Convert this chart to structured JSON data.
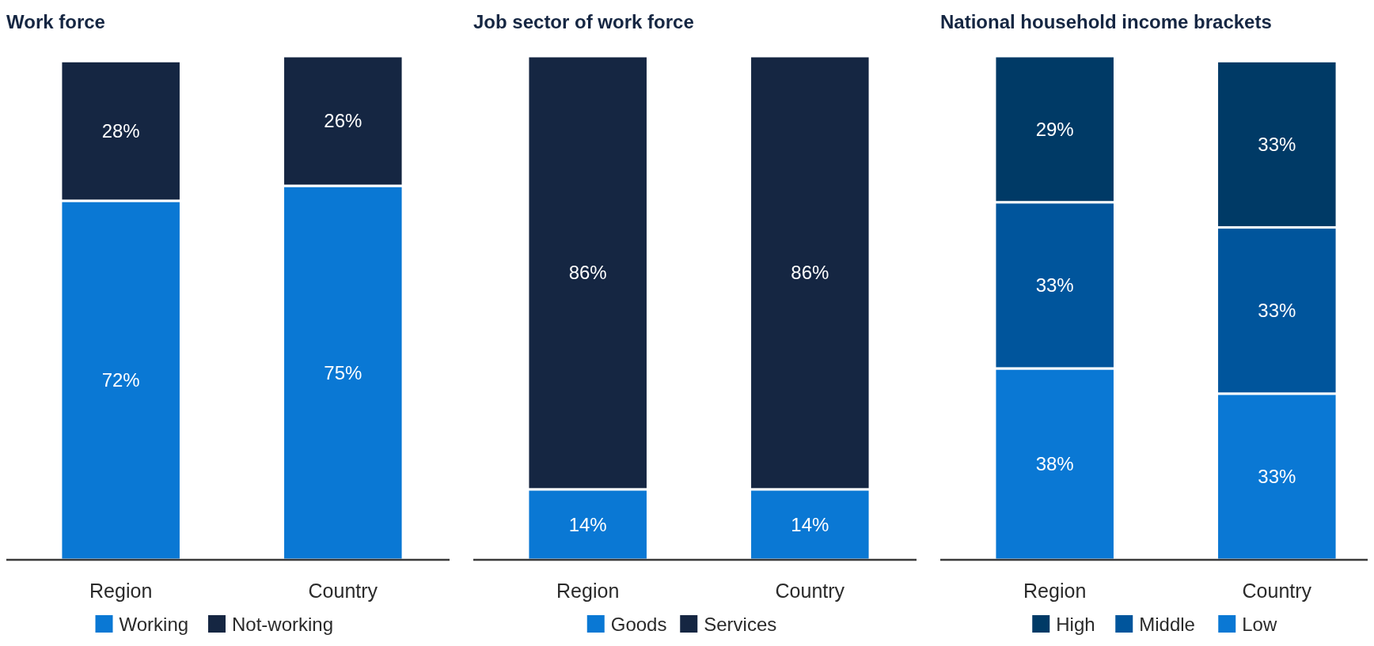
{
  "chart_data": [
    {
      "type": "bar",
      "title": "Work force",
      "categories": [
        "Region",
        "Country"
      ],
      "stacked": true,
      "legend": "bottom",
      "tick_labels": "x",
      "series": [
        {
          "name": "Working",
          "color": "#0a78d4",
          "values": [
            72,
            75
          ],
          "value_labels": [
            "72%",
            "75%"
          ]
        },
        {
          "name": "Not-working",
          "color": "#152642",
          "values": [
            28,
            26
          ],
          "value_labels": [
            "28%",
            "26%"
          ]
        }
      ]
    },
    {
      "type": "bar",
      "title": "Job sector of work force",
      "categories": [
        "Region",
        "Country"
      ],
      "stacked": true,
      "legend": "bottom",
      "tick_labels": "x",
      "series": [
        {
          "name": "Goods",
          "color": "#0a78d4",
          "values": [
            14,
            14
          ],
          "value_labels": [
            "14%",
            "14%"
          ]
        },
        {
          "name": "Services",
          "color": "#152642",
          "values": [
            86,
            86
          ],
          "value_labels": [
            "86%",
            "86%"
          ]
        }
      ]
    },
    {
      "type": "bar",
      "title": "National household income brackets",
      "categories": [
        "Region",
        "Country"
      ],
      "stacked": true,
      "legend": "bottom",
      "tick_labels": "x",
      "series": [
        {
          "name": "Low",
          "color": "#0a78d4",
          "values": [
            38,
            33
          ],
          "value_labels": [
            "38%",
            "33%"
          ]
        },
        {
          "name": "Middle",
          "color": "#00559c",
          "values": [
            33,
            33
          ],
          "value_labels": [
            "33%",
            "33%"
          ]
        },
        {
          "name": "High",
          "color": "#003a66",
          "values": [
            29,
            33
          ],
          "value_labels": [
            "29%",
            "33%"
          ]
        }
      ]
    }
  ]
}
